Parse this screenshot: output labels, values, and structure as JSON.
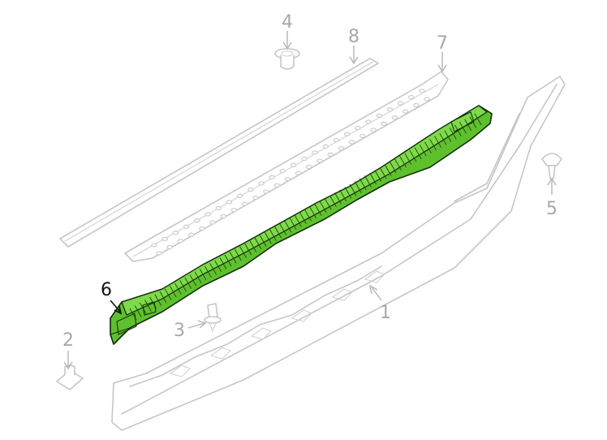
{
  "callouts": [
    {
      "id": "1",
      "label": "1",
      "highlighted": false
    },
    {
      "id": "2",
      "label": "2",
      "highlighted": false
    },
    {
      "id": "3",
      "label": "3",
      "highlighted": false
    },
    {
      "id": "4",
      "label": "4",
      "highlighted": false
    },
    {
      "id": "5",
      "label": "5",
      "highlighted": false
    },
    {
      "id": "6",
      "label": "6",
      "highlighted": true
    },
    {
      "id": "7",
      "label": "7",
      "highlighted": false
    },
    {
      "id": "8",
      "label": "8",
      "highlighted": false
    }
  ],
  "colors": {
    "highlight_fill": "#5fc02e",
    "highlight_outline": "#0f2a08",
    "ghost_line": "#c6c6c6",
    "callout_text": "#a8a8a8",
    "active_callout_text": "#111111",
    "background": "#ffffff"
  }
}
